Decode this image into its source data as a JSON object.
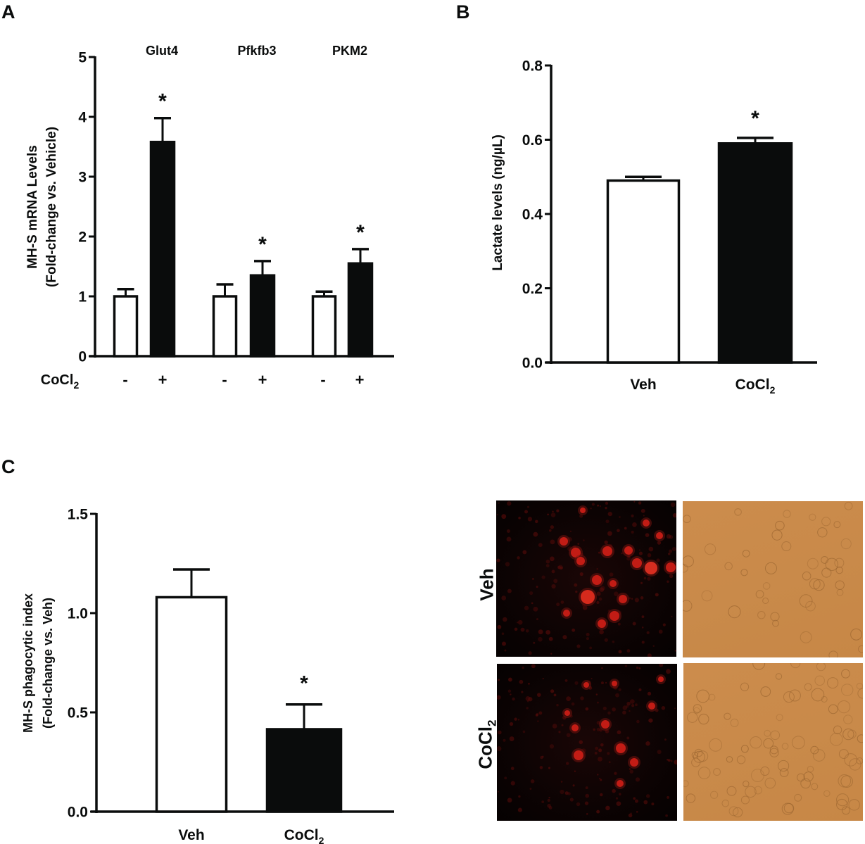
{
  "panels": {
    "A": {
      "letter": "A"
    },
    "B": {
      "letter": "B"
    },
    "C": {
      "letter": "C"
    },
    "micrographs": {
      "row_labels": [
        "Veh",
        "CoCl2"
      ],
      "rows": [
        {
          "label": "Veh",
          "subscript": "",
          "fluorescent": "red-fluorescence-veh",
          "brightfield": "brightfield-veh"
        },
        {
          "label": "CoCl",
          "subscript": "2",
          "fluorescent": "red-fluorescence-cocl2",
          "brightfield": "brightfield-cocl2"
        }
      ],
      "brightfield_color": "#c98a4a",
      "fluorescence_color": "#e0201c"
    }
  },
  "chart_data": [
    {
      "panel": "A",
      "type": "bar",
      "title": "",
      "ylabel": "MH-S mRNA Levels (Fold-change vs. Vehicle)",
      "ylabel_line1": "MH-S mRNA Levels",
      "ylabel_line2": "(Fold-change vs. Vehicle)",
      "xlabel": "CoCl2",
      "xlabel_main": "CoCl",
      "xlabel_sub": "2",
      "ylim": [
        0,
        5
      ],
      "yticks": [
        0,
        1,
        2,
        3,
        4,
        5
      ],
      "ytick_labels": [
        "0",
        "1",
        "2",
        "3",
        "4",
        "5"
      ],
      "groups": [
        "Glut4",
        "Pfkfb3",
        "PKM2"
      ],
      "treatment_labels": [
        "-",
        "+",
        "-",
        "+",
        "-",
        "+"
      ],
      "series": [
        {
          "name": "Vehicle (-)",
          "color": "#ffffff",
          "values": [
            1.0,
            1.0,
            1.0
          ],
          "error": [
            0.12,
            0.2,
            0.08
          ]
        },
        {
          "name": "CoCl2 (+)",
          "color": "#0a0c0c",
          "values": [
            3.58,
            1.35,
            1.55
          ],
          "error": [
            0.4,
            0.24,
            0.24
          ]
        }
      ],
      "significance": [
        "*",
        "*",
        "*"
      ],
      "grid": false,
      "legend": "none"
    },
    {
      "panel": "B",
      "type": "bar",
      "title": "",
      "ylabel": "Lactate levels (ng/µL)",
      "xlabel": "",
      "ylim": [
        0,
        0.8
      ],
      "yticks": [
        0.0,
        0.2,
        0.4,
        0.6,
        0.8
      ],
      "ytick_labels": [
        "0.0",
        "0.2",
        "0.4",
        "0.6",
        "0.8"
      ],
      "categories": [
        "Veh",
        "CoCl2"
      ],
      "category_main": [
        "Veh",
        "CoCl"
      ],
      "category_sub": [
        "",
        "2"
      ],
      "values": [
        0.49,
        0.59
      ],
      "error": [
        0.01,
        0.015
      ],
      "colors": [
        "#ffffff",
        "#0a0c0c"
      ],
      "significance": [
        "",
        "*"
      ],
      "grid": false,
      "legend": "none"
    },
    {
      "panel": "C",
      "type": "bar",
      "title": "",
      "ylabel": "MH-S phagocytic index (Fold-change vs. Veh)",
      "ylabel_line1": "MH-S phagocytic index",
      "ylabel_line2": "(Fold-change vs. Veh)",
      "xlabel": "",
      "ylim": [
        0,
        1.5
      ],
      "yticks": [
        0.0,
        0.5,
        1.0,
        1.5
      ],
      "ytick_labels": [
        "0.0",
        "0.5",
        "1.0",
        "1.5"
      ],
      "categories": [
        "Veh",
        "CoCl2"
      ],
      "category_main": [
        "Veh",
        "CoCl"
      ],
      "category_sub": [
        "",
        "2"
      ],
      "values": [
        1.08,
        0.415
      ],
      "error": [
        0.14,
        0.125
      ],
      "colors": [
        "#ffffff",
        "#0a0c0c"
      ],
      "significance": [
        "",
        "*"
      ],
      "grid": false,
      "legend": "none"
    }
  ]
}
